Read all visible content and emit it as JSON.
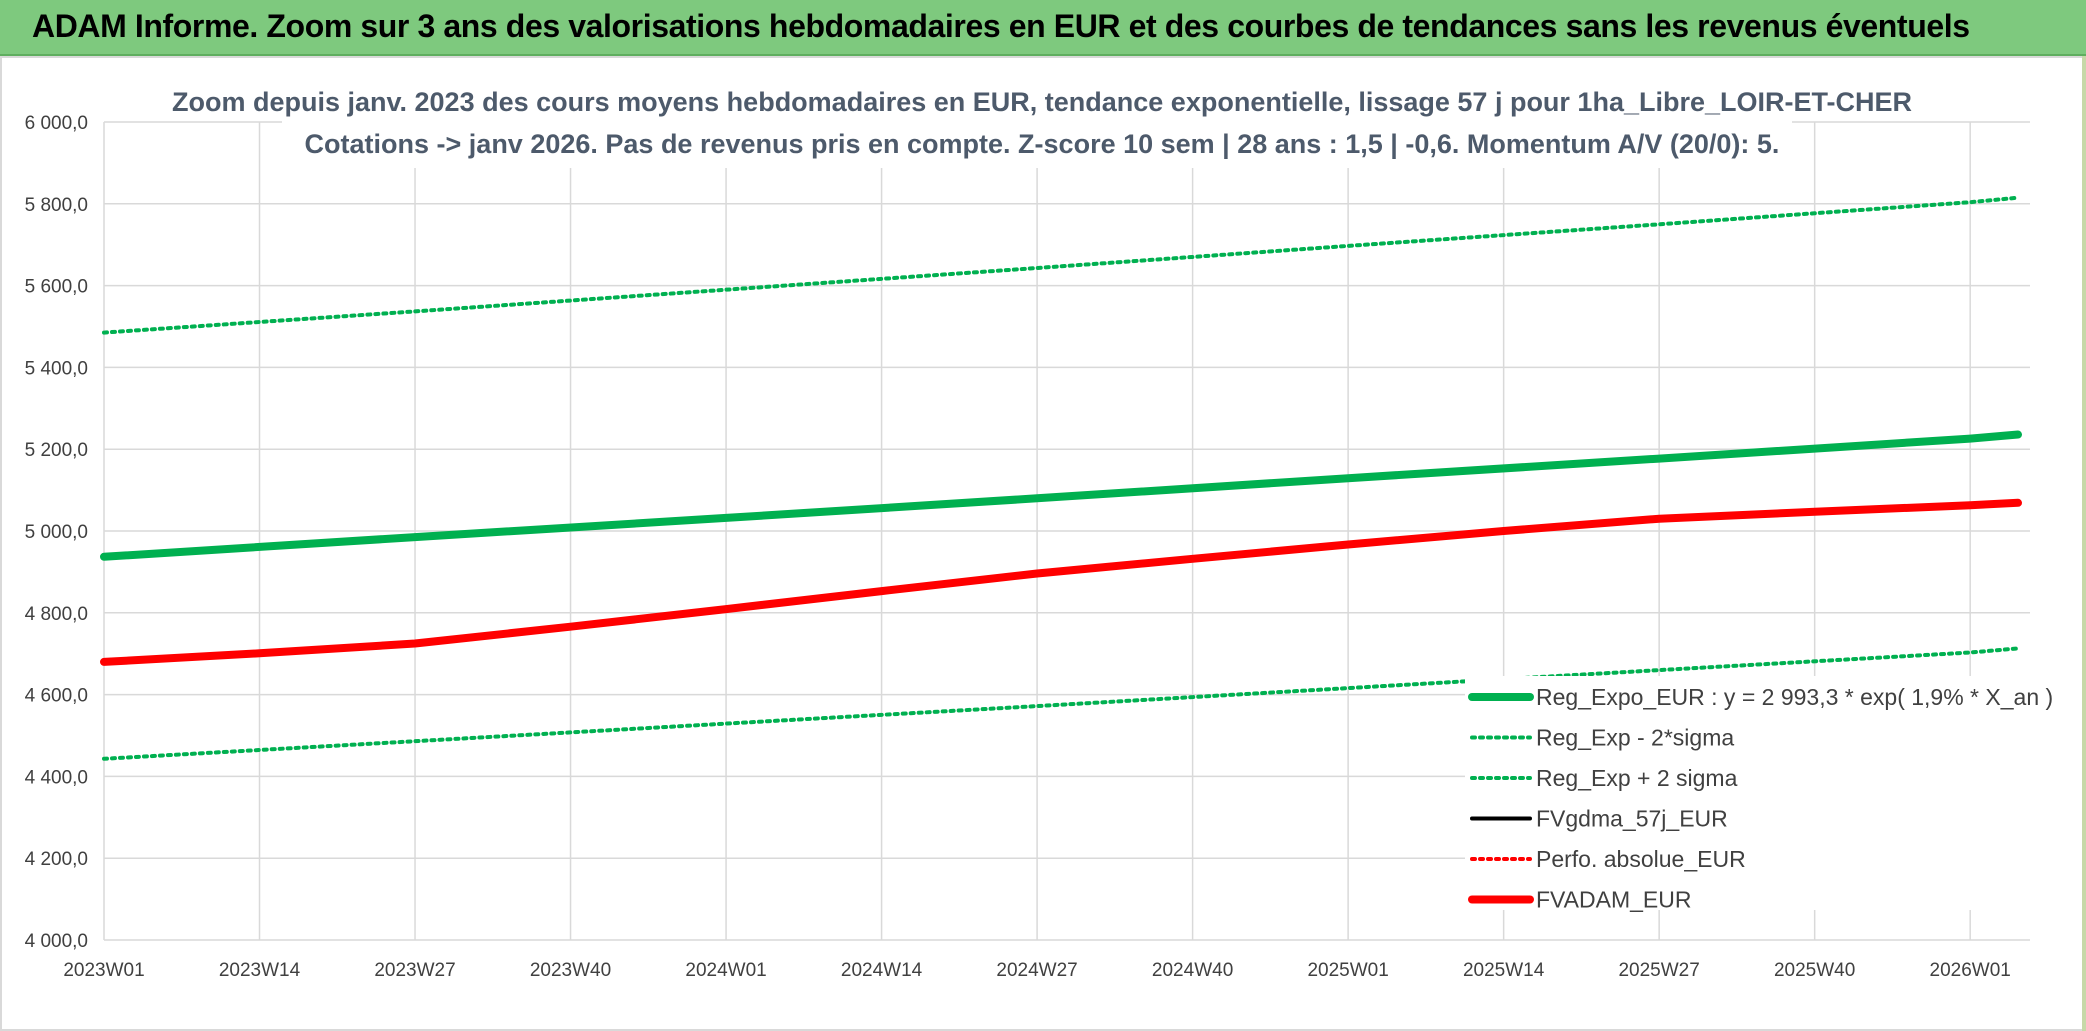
{
  "banner": {
    "title": "ADAM Informe. Zoom sur 3 ans des valorisations hebdomadaires en EUR et des courbes de tendances sans les revenus éventuels"
  },
  "colors": {
    "banner_bg": "#7ec97e",
    "trend_green": "#00b050",
    "fv_black": "#000000",
    "adam_red": "#ff0000",
    "grid": "#d9d9d9"
  },
  "chart_data": {
    "type": "line",
    "title_line1": "Zoom depuis janv. 2023 des cours moyens hebdomadaires en EUR, tendance exponentielle, lissage 57 j pour 1ha_Libre_LOIR-ET-CHER",
    "title_line2": "Cotations -> janv 2026. Pas de revenus pris en compte. Z-score 10 sem | 28 ans : 1,5 | -0,6. Momentum A/V (20/0): 5.",
    "xlabel": "",
    "ylabel": "",
    "x_ticks": [
      "2023W01",
      "2023W14",
      "2023W27",
      "2023W40",
      "2024W01",
      "2024W14",
      "2024W27",
      "2024W40",
      "2025W01",
      "2025W14",
      "2025W27",
      "2025W40",
      "2026W01"
    ],
    "x_range_weeks": [
      0,
      161
    ],
    "ylim": [
      4000,
      6000
    ],
    "y_ticks": [
      "4 000,0",
      "4 200,0",
      "4 400,0",
      "4 600,0",
      "4 800,0",
      "5 000,0",
      "5 200,0",
      "5 400,0",
      "5 600,0",
      "5 800,0",
      "6 000,0"
    ],
    "grid": true,
    "legend_position": "bottom-right",
    "series": [
      {
        "name": "Reg_Expo_EUR : y = 2 993,3 * exp( 1,9% *  X_an )",
        "style": "solid-thick",
        "color": "#00b050",
        "x": [
          "2023W01",
          "2023W27",
          "2024W01",
          "2024W27",
          "2025W01",
          "2025W27",
          "2026W01",
          "2026W05"
        ],
        "values": [
          4937,
          4985,
          5032,
          5080,
          5129,
          5177,
          5226,
          5236
        ]
      },
      {
        "name": "Reg_Exp - 2*sigma",
        "style": "dotted",
        "color": "#00b050",
        "x": [
          "2023W01",
          "2023W27",
          "2024W01",
          "2024W27",
          "2025W01",
          "2025W27",
          "2026W01",
          "2026W05"
        ],
        "values": [
          4443,
          4486,
          4529,
          4572,
          4616,
          4660,
          4703,
          4713
        ]
      },
      {
        "name": "Reg_Exp + 2 sigma",
        "style": "dotted",
        "color": "#00b050",
        "x": [
          "2023W01",
          "2023W27",
          "2024W01",
          "2024W27",
          "2025W01",
          "2025W27",
          "2026W01",
          "2026W05"
        ],
        "values": [
          5485,
          5537,
          5590,
          5643,
          5697,
          5750,
          5804,
          5815
        ]
      },
      {
        "name": "FVgdma_57j_EUR",
        "style": "solid",
        "color": "#000000",
        "x": [
          "2023W01",
          "2023W14",
          "2023W27",
          "2023W40",
          "2024W01",
          "2024W14",
          "2024W27",
          "2024W40",
          "2025W01",
          "2025W14",
          "2025W27",
          "2025W40",
          "2026W01",
          "2026W05"
        ],
        "values": [
          4680,
          4702,
          4728,
          4768,
          4810,
          4852,
          4897,
          4933,
          4967,
          5000,
          5030,
          5048,
          5064,
          5070
        ]
      },
      {
        "name": "Perfo. absolue_EUR",
        "style": "dotted",
        "color": "#ff0000",
        "x": [
          "2023W01",
          "2023W14",
          "2023W27",
          "2023W40",
          "2024W01",
          "2024W14",
          "2024W27",
          "2024W40",
          "2025W01",
          "2025W14",
          "2025W27",
          "2025W40",
          "2026W01",
          "2026W05"
        ],
        "values": [
          4680,
          4702,
          4728,
          4768,
          4810,
          4852,
          4897,
          4933,
          4967,
          5000,
          5030,
          5048,
          5064,
          5070
        ]
      },
      {
        "name": "FVADAM_EUR",
        "style": "solid-thick",
        "color": "#ff0000",
        "x": [
          "2023W01",
          "2023W14",
          "2023W27",
          "2023W40",
          "2024W01",
          "2024W14",
          "2024W27",
          "2024W40",
          "2025W01",
          "2025W14",
          "2025W27",
          "2025W40",
          "2026W01",
          "2026W05"
        ],
        "values": [
          4680,
          4701,
          4725,
          4766,
          4809,
          4853,
          4896,
          4932,
          4967,
          5000,
          5030,
          5047,
          5063,
          5069
        ]
      }
    ]
  }
}
